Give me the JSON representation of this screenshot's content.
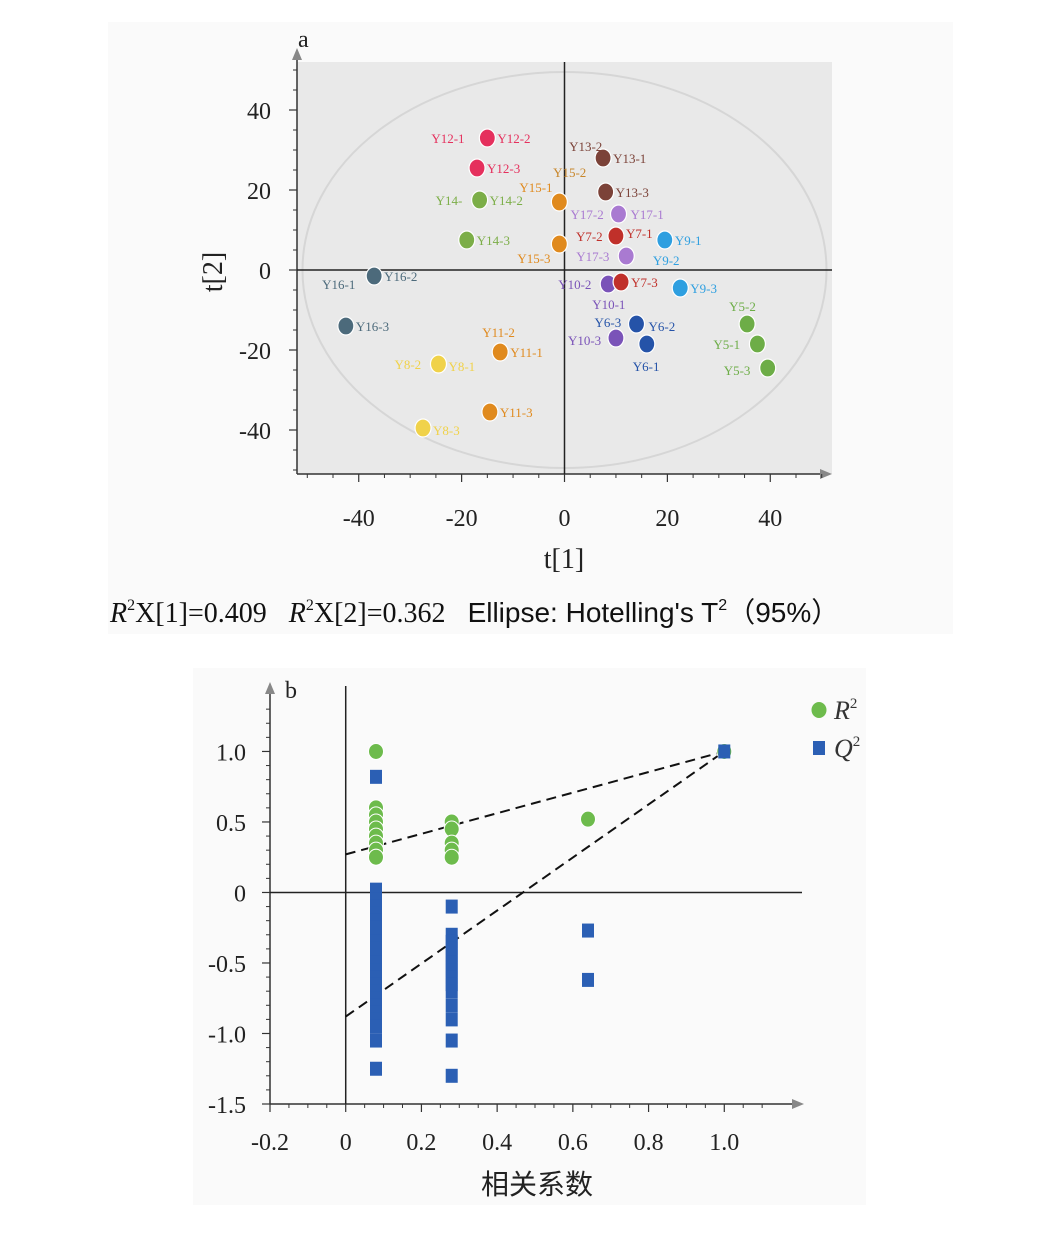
{
  "chart_data": [
    {
      "type": "scatter",
      "panel_label": "a",
      "xlabel": "t[1]",
      "ylabel": "t[2]",
      "xlim": [
        -52,
        52
      ],
      "ylim": [
        -51,
        52
      ],
      "xticks": [
        -40,
        -20,
        0,
        20,
        40
      ],
      "yticks": [
        40,
        20,
        0,
        -20,
        -40
      ],
      "xtick_labels": [
        "-40",
        "-20",
        "0",
        "20",
        "40"
      ],
      "ytick_labels": [
        "40",
        "20",
        "0",
        "-20",
        "-40"
      ],
      "footnote": {
        "r2x1_sym": "R",
        "r2x1_sup": "2",
        "r2x1_rest": "X[1]=0.409",
        "r2x2_sym": "R",
        "r2x2_sup": "2",
        "r2x2_rest": "X[2]=0.362",
        "ellipse_text": "Ellipse: Hotelling's T",
        "ellipse_sup": "2",
        "ellipse_pct": "（95%）"
      },
      "points": [
        {
          "label": "Y12-1",
          "x": -15.0,
          "y": 33.0,
          "color": "#e5305d",
          "lx": -56,
          "ly": 0
        },
        {
          "label": "Y12-2",
          "x": -15.0,
          "y": 33.0,
          "color": "#e5305d",
          "lx": 10,
          "ly": 0
        },
        {
          "label": "Y12-3",
          "x": -17.0,
          "y": 25.5,
          "color": "#e5305d",
          "lx": 10,
          "ly": 0
        },
        {
          "label": "Y13-2",
          "x": 7.5,
          "y": 28.0,
          "color": "#7b4238",
          "lx": -34,
          "ly": -12
        },
        {
          "label": "Y13-1",
          "x": 7.5,
          "y": 28.0,
          "color": "#7b4238",
          "lx": 10,
          "ly": 0
        },
        {
          "label": "Y15-2",
          "x": 7.5,
          "y": 28.0,
          "color": "#c8862a",
          "lx": -50,
          "ly": 14
        },
        {
          "label": "Y13-3",
          "x": 8.0,
          "y": 19.5,
          "color": "#7b4238",
          "lx": 10,
          "ly": 0
        },
        {
          "label": "Y15-1",
          "x": -1.0,
          "y": 17.0,
          "color": "#e08a1e",
          "lx": -40,
          "ly": -15
        },
        {
          "label": "Y14-",
          "x": -16.5,
          "y": 17.5,
          "color": "#7cae48",
          "lx": -44,
          "ly": 0
        },
        {
          "label": "Y14-2",
          "x": -16.5,
          "y": 17.5,
          "color": "#7cae48",
          "lx": 10,
          "ly": 0
        },
        {
          "label": "Y17-2",
          "x": 10.5,
          "y": 14.0,
          "color": "#a97ad1",
          "lx": -48,
          "ly": 0
        },
        {
          "label": "Y17-1",
          "x": 10.5,
          "y": 14.0,
          "color": "#a97ad1",
          "lx": 12,
          "ly": 0
        },
        {
          "label": "Y14-3",
          "x": -19.0,
          "y": 7.5,
          "color": "#7cae48",
          "lx": 10,
          "ly": 0
        },
        {
          "label": "Y7-2",
          "x": 10.0,
          "y": 8.5,
          "color": "#c0302a",
          "lx": -40,
          "ly": 0
        },
        {
          "label": "Y7-1",
          "x": 10.0,
          "y": 8.5,
          "color": "#c0302a",
          "lx": 10,
          "ly": -3
        },
        {
          "label": "Y9-1",
          "x": 19.5,
          "y": 7.5,
          "color": "#2e9fe0",
          "lx": 10,
          "ly": 0
        },
        {
          "label": "Y15-3",
          "x": -1.0,
          "y": 6.5,
          "color": "#e08a1e",
          "lx": -42,
          "ly": 14
        },
        {
          "label": "Y17-3",
          "x": 12.0,
          "y": 3.5,
          "color": "#a97ad1",
          "lx": -50,
          "ly": 0
        },
        {
          "label": "Y9-2",
          "x": 19.5,
          "y": 7.5,
          "color": "#2e9fe0",
          "lx": -12,
          "ly": 20
        },
        {
          "label": "Y16-1",
          "x": -37.0,
          "y": -1.5,
          "color": "#4c6a7b",
          "lx": -52,
          "ly": 8
        },
        {
          "label": "Y16-2",
          "x": -37.0,
          "y": -1.5,
          "color": "#4c6a7b",
          "lx": 10,
          "ly": 0
        },
        {
          "label": "Y10-2",
          "x": 8.5,
          "y": -3.5,
          "color": "#7a53b8",
          "lx": -50,
          "ly": 0
        },
        {
          "label": "Y7-3",
          "x": 11.0,
          "y": -3.0,
          "color": "#c0302a",
          "lx": 10,
          "ly": 0
        },
        {
          "label": "Y9-3",
          "x": 22.5,
          "y": -4.5,
          "color": "#2e9fe0",
          "lx": 10,
          "ly": 0
        },
        {
          "label": "Y10-1",
          "x": 8.5,
          "y": -3.5,
          "color": "#7a53b8",
          "lx": -16,
          "ly": 20
        },
        {
          "label": "Y5-2",
          "x": 35.5,
          "y": -13.5,
          "color": "#6dad47",
          "lx": -18,
          "ly": -18
        },
        {
          "label": "Y16-3",
          "x": -42.5,
          "y": -14.0,
          "color": "#4c6a7b",
          "lx": 10,
          "ly": 0
        },
        {
          "label": "Y6-3",
          "x": 14.0,
          "y": -13.5,
          "color": "#2553a8",
          "lx": -42,
          "ly": -2
        },
        {
          "label": "Y6-2",
          "x": 14.0,
          "y": -13.5,
          "color": "#2553a8",
          "lx": 12,
          "ly": 2
        },
        {
          "label": "Y11-2",
          "x": -12.5,
          "y": -20.5,
          "color": "#e08a1e",
          "lx": -18,
          "ly": -20
        },
        {
          "label": "Y10-3",
          "x": 10.0,
          "y": -17.0,
          "color": "#7a53b8",
          "lx": -48,
          "ly": 2
        },
        {
          "label": "Y5-1",
          "x": 37.5,
          "y": -18.5,
          "color": "#6dad47",
          "lx": -44,
          "ly": 0
        },
        {
          "label": "Y11-1",
          "x": -12.5,
          "y": -20.5,
          "color": "#e08a1e",
          "lx": 10,
          "ly": 0
        },
        {
          "label": "Y8-2",
          "x": -24.5,
          "y": -23.5,
          "color": "#f0d24a",
          "lx": -44,
          "ly": 0
        },
        {
          "label": "Y8-1",
          "x": -24.5,
          "y": -23.5,
          "color": "#f0d24a",
          "lx": 10,
          "ly": 2
        },
        {
          "label": "Y6-1",
          "x": 16.0,
          "y": -18.5,
          "color": "#2553a8",
          "lx": -14,
          "ly": 22
        },
        {
          "label": "Y5-3",
          "x": 39.5,
          "y": -24.5,
          "color": "#6dad47",
          "lx": -44,
          "ly": 2
        },
        {
          "label": "Y11-3",
          "x": -14.5,
          "y": -35.5,
          "color": "#e08a1e",
          "lx": 10,
          "ly": 0
        },
        {
          "label": "Y8-3",
          "x": -27.5,
          "y": -39.5,
          "color": "#f0d24a",
          "lx": 10,
          "ly": 2
        }
      ]
    },
    {
      "type": "scatter",
      "panel_label": "b",
      "xlabel": "相关系数",
      "ylabel": "",
      "xlim": [
        -0.2,
        1.2
      ],
      "ylim": [
        -1.5,
        1.45
      ],
      "xticks": [
        -0.2,
        0,
        0.2,
        0.4,
        0.6,
        0.8,
        1.0
      ],
      "xtick_labels": [
        "-0.2",
        "0",
        "0.2",
        "0.4",
        "0.6",
        "0.8",
        "1.0"
      ],
      "yticks": [
        1.0,
        0.5,
        0,
        -0.5,
        -1.0,
        -1.5
      ],
      "ytick_labels": [
        "1.0",
        "0.5",
        "0",
        "-0.5",
        "-1.0",
        "-1.5"
      ],
      "legend": [
        {
          "symbol": "R",
          "sup": "2",
          "marker": "circle",
          "color": "#6dbb4c"
        },
        {
          "symbol": "Q",
          "sup": "2",
          "marker": "square",
          "color": "#2b5fb4"
        }
      ],
      "series": [
        {
          "name": "R2",
          "marker": "circle",
          "color": "#6dbb4c",
          "x": [
            0.08,
            0.08,
            0.08,
            0.08,
            0.08,
            0.08,
            0.08,
            0.08,
            0.08,
            0.08,
            0.28,
            0.28,
            0.28,
            0.28,
            0.28,
            0.64,
            1.0
          ],
          "y": [
            1.0,
            0.6,
            0.55,
            0.5,
            0.45,
            0.4,
            0.35,
            0.3,
            0.25,
            0.25,
            0.5,
            0.45,
            0.35,
            0.3,
            0.25,
            0.52,
            1.0
          ]
        },
        {
          "name": "Q2",
          "marker": "square",
          "color": "#2b5fb4",
          "x": [
            0.08,
            0.08,
            0.08,
            0.08,
            0.08,
            0.08,
            0.08,
            0.08,
            0.08,
            0.08,
            0.08,
            0.08,
            0.08,
            0.08,
            0.08,
            0.08,
            0.08,
            0.08,
            0.08,
            0.08,
            0.08,
            0.08,
            0.08,
            0.28,
            0.28,
            0.28,
            0.28,
            0.28,
            0.28,
            0.28,
            0.28,
            0.28,
            0.28,
            0.28,
            0.28,
            0.28,
            0.28,
            0.64,
            0.64,
            1.0
          ],
          "y": [
            0.82,
            0.02,
            -0.05,
            -0.1,
            -0.15,
            -0.2,
            -0.25,
            -0.3,
            -0.35,
            -0.4,
            -0.45,
            -0.5,
            -0.55,
            -0.6,
            -0.65,
            -0.7,
            -0.75,
            -0.8,
            -0.85,
            -0.9,
            -0.95,
            -1.05,
            -1.25,
            -0.1,
            -0.3,
            -0.35,
            -0.4,
            -0.45,
            -0.5,
            -0.55,
            -0.6,
            -0.65,
            -0.7,
            -0.8,
            -0.9,
            -1.05,
            -1.3,
            -0.27,
            -0.62,
            1.0
          ]
        }
      ],
      "lines": [
        {
          "name": "R2 regression",
          "x": [
            0,
            1.0
          ],
          "y": [
            0.27,
            1.0
          ],
          "style": "dashed"
        },
        {
          "name": "Q2 regression",
          "x": [
            0,
            1.0
          ],
          "y": [
            -0.88,
            1.0
          ],
          "style": "dashed"
        }
      ]
    }
  ]
}
